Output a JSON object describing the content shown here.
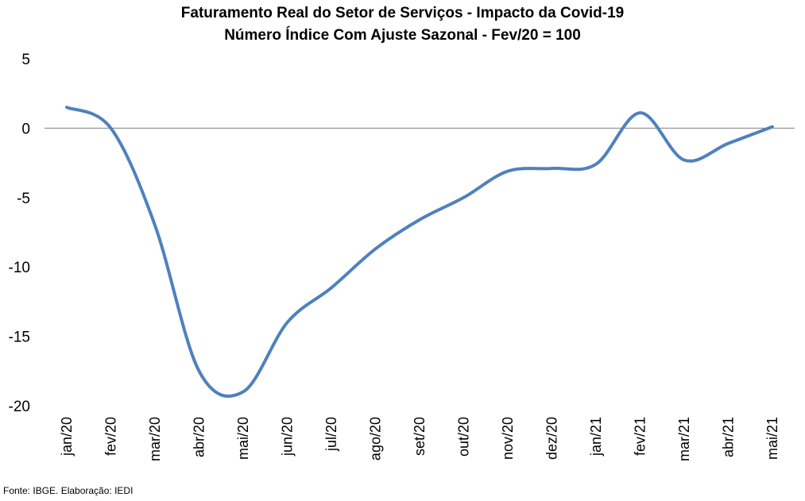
{
  "chart_data": {
    "type": "line",
    "title": "Faturamento Real do Setor de Serviços - Impacto da Covid-19",
    "subtitle": "Número Índice Com Ajuste Sazonal - Fev/20 = 100",
    "categories": [
      "jan/20",
      "fev/20",
      "mar/20",
      "abr/20",
      "mai/20",
      "jun/20",
      "jul/20",
      "ago/20",
      "set/20",
      "out/20",
      "nov/20",
      "dez/20",
      "jan/21",
      "fev/21",
      "mar/21",
      "abr/21",
      "mai/21"
    ],
    "series": [
      {
        "values": [
          1.5,
          0.0,
          -7.0,
          -17.5,
          -19.0,
          -14.0,
          -11.5,
          -8.7,
          -6.6,
          -5.0,
          -3.1,
          -2.9,
          -2.6,
          1.1,
          -2.3,
          -1.1,
          0.1
        ]
      }
    ],
    "ylim": [
      -20,
      5
    ],
    "yticks": [
      5,
      0,
      -5,
      -10,
      -15,
      -20
    ],
    "line_color": "#4f81bd",
    "zero_line": true,
    "grid": false
  },
  "source": "Fonte: IBGE. Elaboração: IEDI"
}
